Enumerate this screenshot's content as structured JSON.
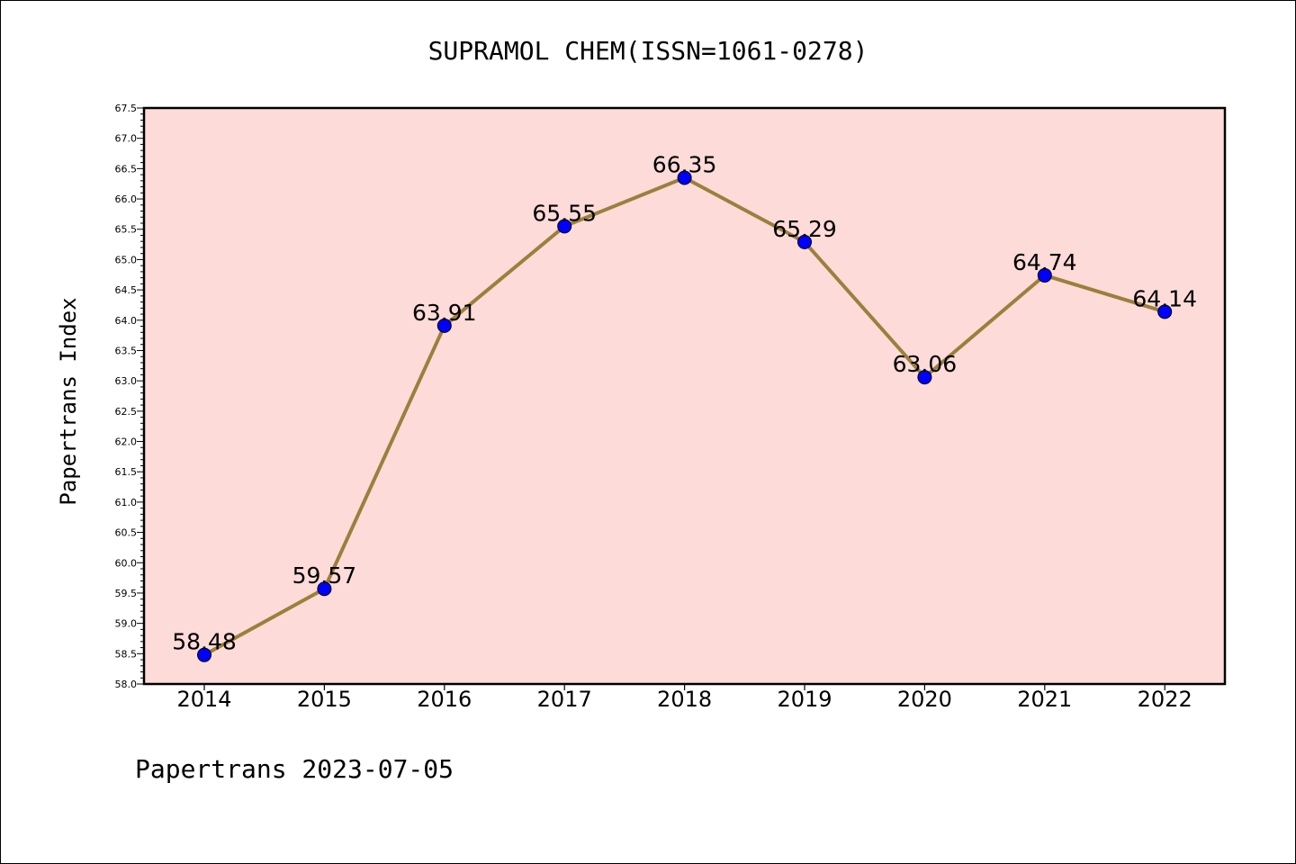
{
  "chart_data": {
    "type": "line",
    "title": "SUPRAMOL CHEM(ISSN=1061-0278)",
    "xlabel": "",
    "ylabel": "Papertrans Index",
    "categories": [
      "2014",
      "2015",
      "2016",
      "2017",
      "2018",
      "2019",
      "2020",
      "2021",
      "2022"
    ],
    "values": [
      58.48,
      59.57,
      63.91,
      65.55,
      66.35,
      65.29,
      63.06,
      64.74,
      64.14
    ],
    "data_labels": [
      "58.48",
      "59.57",
      "63.91",
      "65.55",
      "66.35",
      "65.29",
      "63.06",
      "64.74",
      "64.14"
    ],
    "ylim": [
      58.0,
      67.5
    ],
    "yticks": [
      "58.0",
      "58.5",
      "59.0",
      "59.5",
      "60.0",
      "60.5",
      "61.0",
      "61.5",
      "62.0",
      "62.5",
      "63.0",
      "63.5",
      "64.0",
      "64.5",
      "65.0",
      "65.5",
      "66.0",
      "66.5",
      "67.0",
      "67.5"
    ],
    "grid": false,
    "legend": "none",
    "colors": {
      "plot_background": "#fddbd9",
      "line": "#9b803c",
      "marker": "#0000ff"
    }
  },
  "footer": "Papertrans 2023-07-05"
}
